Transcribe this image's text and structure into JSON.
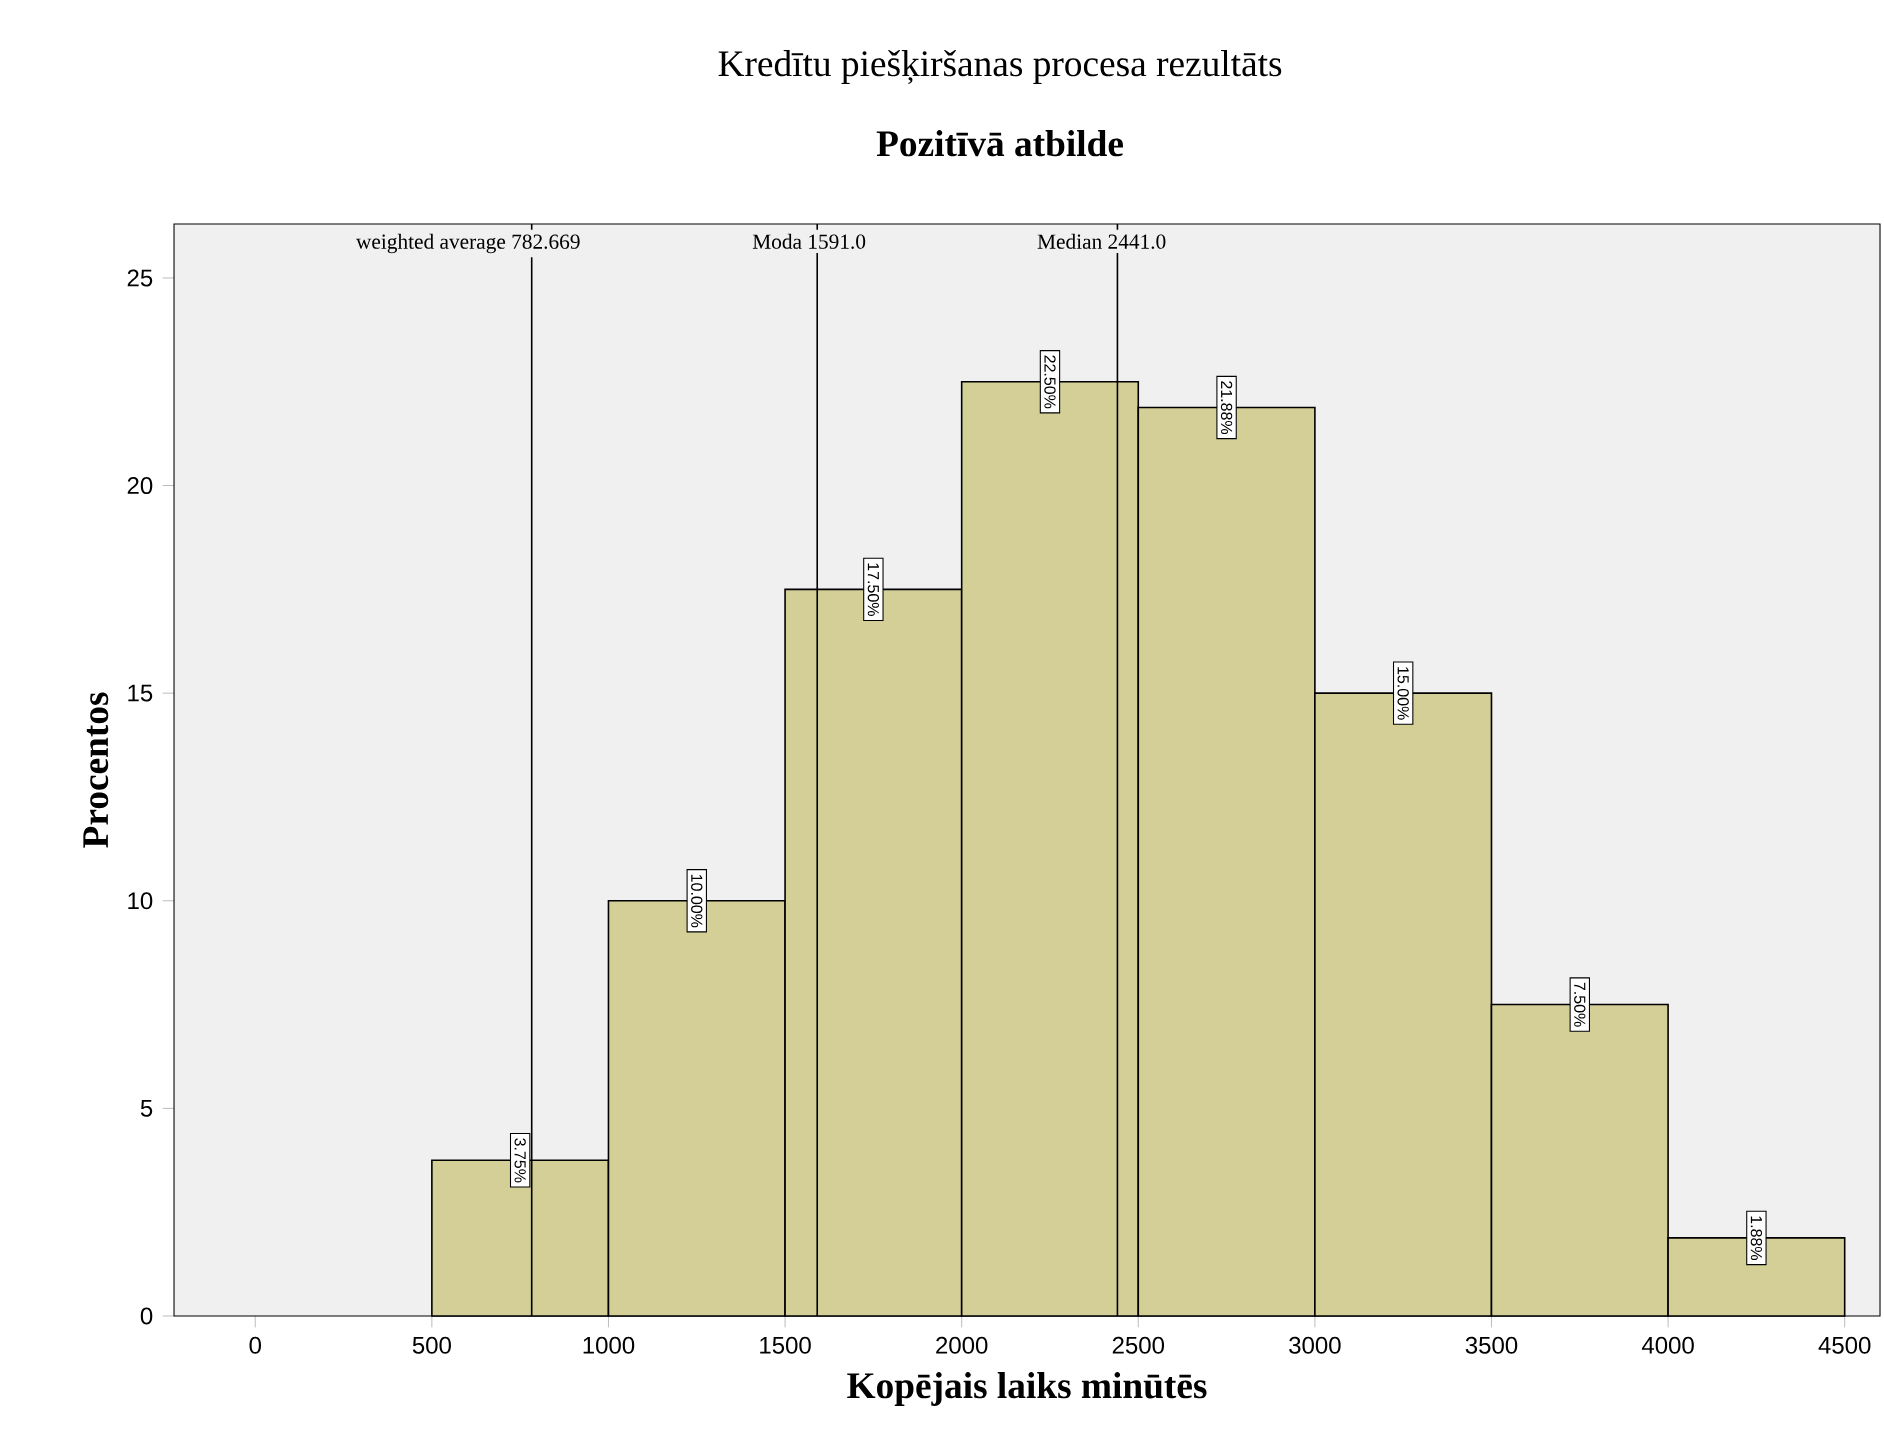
{
  "chart_data": {
    "type": "histogram",
    "title": "Kredītu piešķiršanas procesa rezultāts",
    "subtitle": "Pozitīvā atbilde",
    "xlabel": "Kopējais laiks minūtēs",
    "ylabel": "Procentos",
    "bins": [
      500,
      1000,
      1500,
      2000,
      2500,
      3000,
      3500,
      4000,
      4500
    ],
    "values": [
      3.75,
      10.0,
      17.5,
      22.5,
      21.88,
      15.0,
      7.5,
      1.88
    ],
    "value_labels": [
      "3.75%",
      "10.00%",
      "17.50%",
      "22.50%",
      "21.88%",
      "15.00%",
      "7.50%",
      "1.88%"
    ],
    "color": "#d3cf97",
    "xlim": [
      -230,
      4600
    ],
    "ylim": [
      0,
      26.3
    ],
    "xticks": [
      0,
      500,
      1000,
      1500,
      2000,
      2500,
      3000,
      3500,
      4000,
      4500
    ],
    "yticks": [
      0,
      5,
      10,
      15,
      20,
      25
    ],
    "ref_lines": [
      {
        "axis": "x",
        "value": 782.669,
        "label": "weighted average 782.669"
      },
      {
        "axis": "x",
        "value": 1591.0,
        "label": "Moda 1591.0"
      },
      {
        "axis": "x",
        "value": 2441.0,
        "label": "Median 2441.0"
      }
    ],
    "grid": false
  }
}
